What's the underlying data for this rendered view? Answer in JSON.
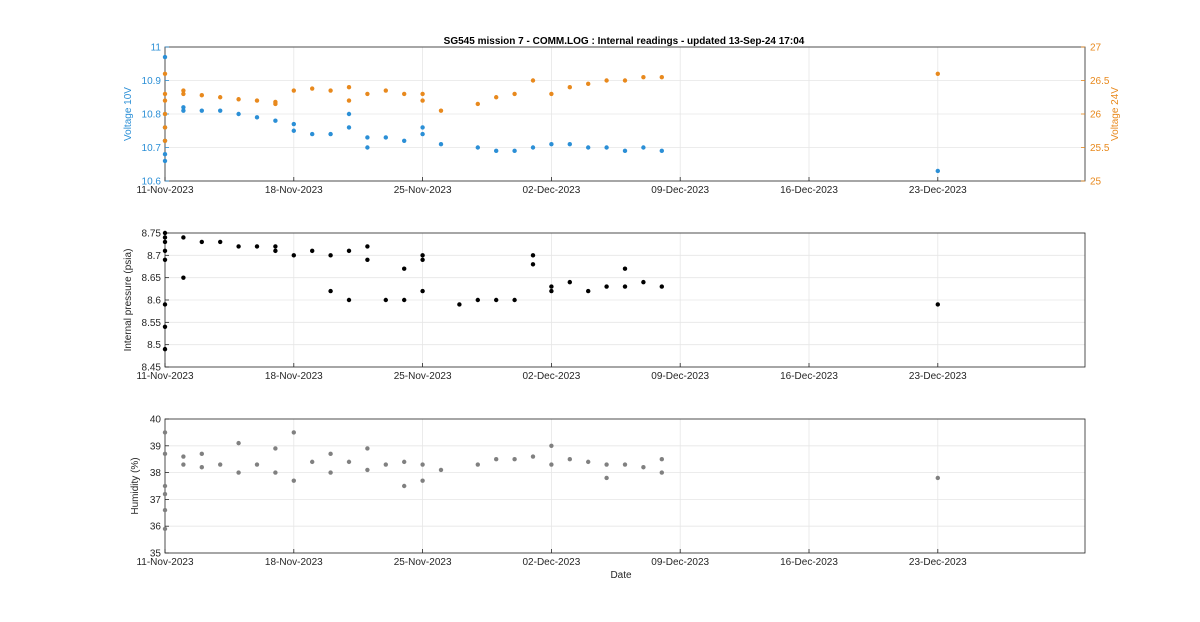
{
  "title": "SG545 mission 7  -  COMM.LOG : Internal readings  -  updated 13-Sep-24 17:04",
  "xlabel": "Date",
  "colors": {
    "v10": "#2b8fd6",
    "v24": "#e8891d",
    "pressure": "#000000",
    "humidity": "#808080"
  },
  "chart_data": [
    {
      "type": "scatter",
      "xlim": [
        "2023-11-11",
        "2023-12-31"
      ],
      "xticks": [
        "11-Nov-2023",
        "18-Nov-2023",
        "25-Nov-2023",
        "02-Dec-2023",
        "09-Dec-2023",
        "16-Dec-2023",
        "23-Dec-2023"
      ],
      "grid": true,
      "y_left": {
        "label": "Voltage 10V",
        "ylim": [
          10.6,
          11
        ],
        "ticks": [
          "10.6",
          "10.7",
          "10.8",
          "10.9",
          "11"
        ]
      },
      "y_right": {
        "label": "Voltage 24V",
        "ylim": [
          25,
          27
        ],
        "ticks": [
          "25",
          "25.5",
          "26",
          "26.5",
          "27"
        ]
      },
      "series": [
        {
          "axis": "left",
          "x": [
            "2023-11-11",
            "2023-11-11",
            "2023-11-11",
            "2023-11-11",
            "2023-11-11",
            "2023-11-11",
            "2023-11-12",
            "2023-11-12",
            "2023-11-13",
            "2023-11-14",
            "2023-11-15",
            "2023-11-16",
            "2023-11-17",
            "2023-11-18",
            "2023-11-18",
            "2023-11-19",
            "2023-11-20",
            "2023-11-21",
            "2023-11-21",
            "2023-11-22",
            "2023-11-22",
            "2023-11-23",
            "2023-11-24",
            "2023-11-25",
            "2023-11-25",
            "2023-11-26",
            "2023-11-28",
            "2023-11-29",
            "2023-11-30",
            "2023-12-01",
            "2023-12-02",
            "2023-12-03",
            "2023-12-04",
            "2023-12-05",
            "2023-12-06",
            "2023-12-07",
            "2023-12-08",
            "2023-12-23"
          ],
          "y": [
            10.66,
            10.68,
            10.72,
            10.76,
            10.8,
            10.97,
            10.82,
            10.81,
            10.81,
            10.81,
            10.8,
            10.79,
            10.78,
            10.77,
            10.75,
            10.74,
            10.74,
            10.76,
            10.8,
            10.73,
            10.7,
            10.73,
            10.72,
            10.74,
            10.76,
            10.71,
            10.7,
            10.69,
            10.69,
            10.7,
            10.71,
            10.71,
            10.7,
            10.7,
            10.69,
            10.7,
            10.69,
            10.63
          ]
        },
        {
          "axis": "right",
          "x": [
            "2023-11-11",
            "2023-11-11",
            "2023-11-11",
            "2023-11-11",
            "2023-11-11",
            "2023-11-11",
            "2023-11-12",
            "2023-11-12",
            "2023-11-13",
            "2023-11-14",
            "2023-11-15",
            "2023-11-16",
            "2023-11-17",
            "2023-11-17",
            "2023-11-18",
            "2023-11-19",
            "2023-11-20",
            "2023-11-21",
            "2023-11-21",
            "2023-11-22",
            "2023-11-23",
            "2023-11-24",
            "2023-11-25",
            "2023-11-25",
            "2023-11-26",
            "2023-11-28",
            "2023-11-29",
            "2023-11-30",
            "2023-12-01",
            "2023-12-02",
            "2023-12-03",
            "2023-12-04",
            "2023-12-05",
            "2023-12-06",
            "2023-12-07",
            "2023-12-08",
            "2023-12-23"
          ],
          "y": [
            25.6,
            25.8,
            26.0,
            26.2,
            26.3,
            26.6,
            26.35,
            26.3,
            26.28,
            26.25,
            26.22,
            26.2,
            26.18,
            26.15,
            26.35,
            26.38,
            26.35,
            26.2,
            26.4,
            26.3,
            26.35,
            26.3,
            26.2,
            26.3,
            26.05,
            26.15,
            26.25,
            26.3,
            26.5,
            26.3,
            26.4,
            26.45,
            26.5,
            26.5,
            26.55,
            26.55,
            26.6
          ]
        }
      ]
    },
    {
      "type": "scatter",
      "xlim": [
        "2023-11-11",
        "2023-12-31"
      ],
      "xticks": [
        "11-Nov-2023",
        "18-Nov-2023",
        "25-Nov-2023",
        "02-Dec-2023",
        "09-Dec-2023",
        "16-Dec-2023",
        "23-Dec-2023"
      ],
      "grid": true,
      "ylabel": "Internal pressure (psia)",
      "ylim": [
        8.45,
        8.75
      ],
      "yticks": [
        "8.45",
        "8.5",
        "8.55",
        "8.6",
        "8.65",
        "8.7",
        "8.75"
      ],
      "series": [
        {
          "x": [
            "2023-11-11",
            "2023-11-11",
            "2023-11-11",
            "2023-11-11",
            "2023-11-11",
            "2023-11-11",
            "2023-11-11",
            "2023-11-11",
            "2023-11-12",
            "2023-11-12",
            "2023-11-13",
            "2023-11-14",
            "2023-11-15",
            "2023-11-16",
            "2023-11-17",
            "2023-11-17",
            "2023-11-18",
            "2023-11-19",
            "2023-11-20",
            "2023-11-20",
            "2023-11-21",
            "2023-11-21",
            "2023-11-22",
            "2023-11-22",
            "2023-11-23",
            "2023-11-24",
            "2023-11-24",
            "2023-11-25",
            "2023-11-25",
            "2023-11-25",
            "2023-11-27",
            "2023-11-28",
            "2023-11-29",
            "2023-11-30",
            "2023-12-01",
            "2023-12-01",
            "2023-12-02",
            "2023-12-02",
            "2023-12-03",
            "2023-12-04",
            "2023-12-05",
            "2023-12-06",
            "2023-12-06",
            "2023-12-07",
            "2023-12-08",
            "2023-12-23"
          ],
          "y": [
            8.49,
            8.54,
            8.59,
            8.69,
            8.71,
            8.73,
            8.74,
            8.75,
            8.74,
            8.65,
            8.73,
            8.73,
            8.72,
            8.72,
            8.72,
            8.71,
            8.7,
            8.71,
            8.7,
            8.62,
            8.71,
            8.6,
            8.69,
            8.72,
            8.6,
            8.67,
            8.6,
            8.7,
            8.62,
            8.69,
            8.59,
            8.6,
            8.6,
            8.6,
            8.68,
            8.7,
            8.62,
            8.63,
            8.64,
            8.62,
            8.63,
            8.67,
            8.63,
            8.64,
            8.63,
            8.59
          ]
        }
      ]
    },
    {
      "type": "scatter",
      "xlim": [
        "2023-11-11",
        "2023-12-31"
      ],
      "xticks": [
        "11-Nov-2023",
        "18-Nov-2023",
        "25-Nov-2023",
        "02-Dec-2023",
        "09-Dec-2023",
        "16-Dec-2023",
        "23-Dec-2023"
      ],
      "grid": true,
      "ylabel": "Humidity (%)",
      "ylim": [
        35,
        40
      ],
      "yticks": [
        "35",
        "36",
        "37",
        "38",
        "39",
        "40"
      ],
      "series": [
        {
          "x": [
            "2023-11-11",
            "2023-11-11",
            "2023-11-11",
            "2023-11-11",
            "2023-11-11",
            "2023-11-11",
            "2023-11-12",
            "2023-11-12",
            "2023-11-13",
            "2023-11-13",
            "2023-11-14",
            "2023-11-15",
            "2023-11-15",
            "2023-11-16",
            "2023-11-17",
            "2023-11-17",
            "2023-11-18",
            "2023-11-18",
            "2023-11-19",
            "2023-11-20",
            "2023-11-20",
            "2023-11-21",
            "2023-11-22",
            "2023-11-22",
            "2023-11-23",
            "2023-11-24",
            "2023-11-24",
            "2023-11-25",
            "2023-11-25",
            "2023-11-26",
            "2023-11-28",
            "2023-11-29",
            "2023-11-30",
            "2023-12-01",
            "2023-12-02",
            "2023-12-02",
            "2023-12-03",
            "2023-12-04",
            "2023-12-05",
            "2023-12-05",
            "2023-12-06",
            "2023-12-07",
            "2023-12-08",
            "2023-12-08",
            "2023-12-23"
          ],
          "y": [
            35.9,
            36.6,
            37.2,
            37.5,
            38.7,
            39.5,
            38.3,
            38.6,
            38.2,
            38.7,
            38.3,
            38.0,
            39.1,
            38.3,
            38.0,
            38.9,
            37.7,
            39.5,
            38.4,
            38.0,
            38.7,
            38.4,
            38.9,
            38.1,
            38.3,
            37.5,
            38.4,
            37.7,
            38.3,
            38.1,
            38.3,
            38.5,
            38.5,
            38.6,
            38.3,
            39.0,
            38.5,
            38.4,
            38.3,
            37.8,
            38.3,
            38.2,
            38.5,
            38.0,
            37.8
          ]
        }
      ]
    }
  ]
}
